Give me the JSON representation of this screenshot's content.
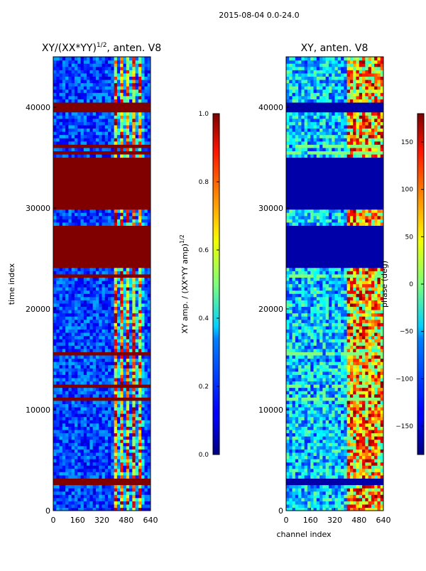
{
  "suptitle": "2015-08-04 0.0-24.0",
  "chart_data": [
    {
      "type": "heatmap",
      "title_main": "XY/(XX*YY)",
      "title_exp": "1/2",
      "title_tail": ", anten. V8",
      "xlabel": "",
      "ylabel": "time index",
      "xlim": [
        0,
        640
      ],
      "ylim": [
        0,
        45000
      ],
      "xticks": [
        "0",
        "160",
        "320",
        "480",
        "640"
      ],
      "xtick_values": [
        0,
        160,
        320,
        480,
        640
      ],
      "yticks": [
        "0",
        "10000",
        "20000",
        "30000",
        "40000"
      ],
      "ytick_values": [
        0,
        10000,
        20000,
        30000,
        40000
      ],
      "saturated_time_ranges": [
        [
          2700,
          3300
        ],
        [
          24000,
          28200
        ],
        [
          30000,
          35000
        ],
        [
          39600,
          40400
        ]
      ],
      "colorbar": {
        "label_main": "XY amp. / (XX*YY amp)",
        "label_exp": "1/2",
        "range": [
          0,
          1
        ],
        "ticks": [
          "0.0",
          "0.2",
          "0.4",
          "0.6",
          "0.8",
          "1.0"
        ],
        "tick_values": [
          0,
          0.2,
          0.4,
          0.6,
          0.8,
          1.0
        ]
      }
    },
    {
      "type": "heatmap",
      "title": "XY, anten. V8",
      "xlabel": "channel index",
      "ylabel": "",
      "xlim": [
        0,
        640
      ],
      "ylim": [
        0,
        45000
      ],
      "xticks": [
        "0",
        "160",
        "320",
        "480",
        "640"
      ],
      "xtick_values": [
        0,
        160,
        320,
        480,
        640
      ],
      "yticks": [
        "0",
        "10000",
        "20000",
        "30000",
        "40000"
      ],
      "ytick_values": [
        0,
        10000,
        20000,
        30000,
        40000
      ],
      "flagged_time_ranges": [
        [
          2700,
          3300
        ],
        [
          24000,
          28200
        ],
        [
          30000,
          35000
        ],
        [
          39600,
          40400
        ]
      ],
      "colorbar": {
        "label": "phase (deg)",
        "range": [
          -180,
          180
        ],
        "ticks": [
          "−150",
          "−100",
          "−50",
          "0",
          "50",
          "100",
          "150"
        ],
        "tick_values": [
          -150,
          -100,
          -50,
          0,
          50,
          100,
          150
        ]
      }
    }
  ],
  "colormap_name": "jet"
}
